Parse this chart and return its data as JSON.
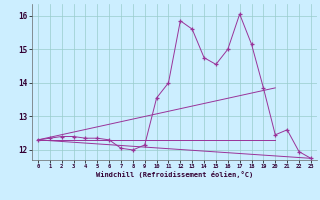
{
  "xlabel": "Windchill (Refroidissement éolien,°C)",
  "bg_color": "#cceeff",
  "grid_color": "#99cccc",
  "line_color": "#993399",
  "xlim": [
    -0.5,
    23.5
  ],
  "ylim": [
    11.7,
    16.35
  ],
  "yticks": [
    12,
    13,
    14,
    15,
    16
  ],
  "xticks": [
    0,
    1,
    2,
    3,
    4,
    5,
    6,
    7,
    8,
    9,
    10,
    11,
    12,
    13,
    14,
    15,
    16,
    17,
    18,
    19,
    20,
    21,
    22,
    23
  ],
  "line1_x": [
    0,
    1,
    2,
    3,
    4,
    5,
    6,
    7,
    8,
    9,
    10,
    11,
    12,
    13,
    14,
    15,
    16,
    17,
    18,
    19,
    20,
    21,
    22,
    23
  ],
  "line1_y": [
    12.3,
    12.35,
    12.4,
    12.4,
    12.35,
    12.35,
    12.3,
    12.05,
    12.0,
    12.15,
    13.55,
    14.0,
    15.85,
    15.6,
    14.75,
    14.55,
    15.0,
    16.05,
    15.15,
    13.85,
    12.45,
    12.6,
    11.95,
    11.75
  ],
  "line2_x": [
    0,
    20
  ],
  "line2_y": [
    12.3,
    13.85
  ],
  "line3_x": [
    0,
    23
  ],
  "line3_y": [
    12.3,
    11.75
  ],
  "line4_x": [
    0,
    20
  ],
  "line4_y": [
    12.3,
    12.3
  ]
}
